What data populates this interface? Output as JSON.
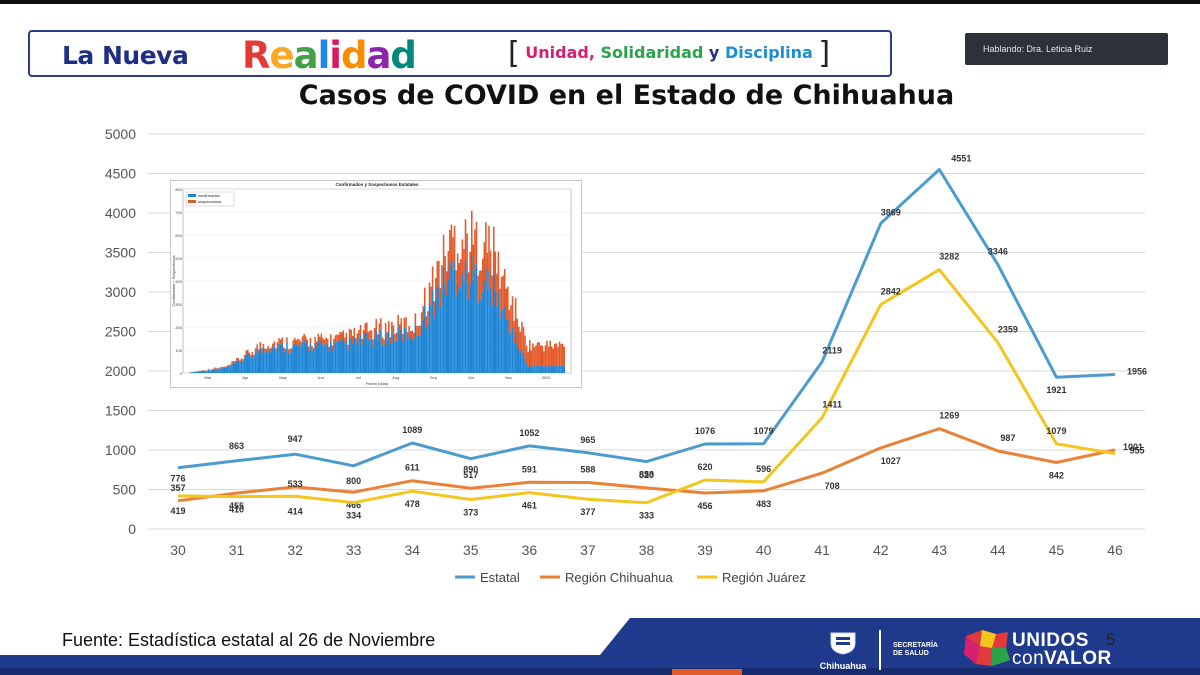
{
  "banner": {
    "brand_part1": "La Nueva",
    "brand_part2": "Realidad",
    "slogan_unidad": "Unidad,",
    "slogan_solidaridad": "Solidaridad",
    "slogan_y": "y",
    "slogan_disciplina": "Disciplina"
  },
  "speaker_label": "Hablando: Dra. Leticia Ruiz",
  "footer": {
    "source": "Fuente: Estadística estatal al 26 de Noviembre",
    "page_number": "5",
    "gov_name": "Chihuahua",
    "secretaria": "SECRETARÍA\nDE SALUD",
    "unidos_line1": "UNIDOS",
    "unidos_con": "con",
    "unidos_valor": "VALOR"
  },
  "colors": {
    "estatal": "#4b9ccc",
    "region_chihuahua": "#e98237",
    "region_juarez": "#f2c61e",
    "footer_blue": "#1f3a8c",
    "brand_navy": "#1f2f86"
  },
  "chart_data": [
    {
      "type": "line",
      "title": "Casos de COVID en el Estado de Chihuahua",
      "xlabel": "",
      "ylabel": "",
      "x": [
        30,
        31,
        32,
        33,
        34,
        35,
        36,
        37,
        38,
        39,
        40,
        41,
        42,
        43,
        44,
        45,
        46
      ],
      "ylim": [
        0,
        5000
      ],
      "yticks": [
        0,
        500,
        1000,
        1500,
        2000,
        2500,
        3000,
        3500,
        4000,
        4500,
        5000
      ],
      "grid": true,
      "legend": "bottom",
      "series": [
        {
          "name": "Estatal",
          "values": [
            776,
            863,
            947,
            800,
            1089,
            890,
            1052,
            965,
            853,
            1076,
            1079,
            2119,
            3869,
            4551,
            3346,
            1921,
            1956
          ]
        },
        {
          "name": "Región Chihuahua",
          "values": [
            357,
            455,
            533,
            466,
            611,
            517,
            591,
            588,
            520,
            456,
            483,
            708,
            1027,
            1269,
            987,
            842,
            1001
          ]
        },
        {
          "name": "Región Juárez",
          "values": [
            419,
            410,
            414,
            334,
            478,
            373,
            461,
            377,
            333,
            620,
            596,
            1411,
            2842,
            3282,
            2359,
            1079,
            955
          ]
        }
      ]
    },
    {
      "type": "bar",
      "title": "Confirmados y Sospechosos Estatales",
      "xlabel": "Fecha (días)",
      "ylabel": "Confirmados + Sospechosos",
      "categories": [
        "Mar",
        "Apr",
        "May",
        "Jun",
        "Jul",
        "Aug",
        "Sep",
        "Oct",
        "Nov",
        "2020"
      ],
      "ylim": [
        0,
        800
      ],
      "yticks": [
        0,
        100,
        200,
        300,
        400,
        500,
        600,
        700,
        800
      ],
      "legend": "top-left",
      "series": [
        {
          "name": "confirmados",
          "values": [
            2,
            22,
            110,
            115,
            120,
            150,
            175,
            450,
            380,
            30
          ]
        },
        {
          "name": "sospechosos",
          "values": [
            1,
            6,
            20,
            22,
            28,
            40,
            40,
            140,
            170,
            90
          ]
        }
      ]
    }
  ]
}
